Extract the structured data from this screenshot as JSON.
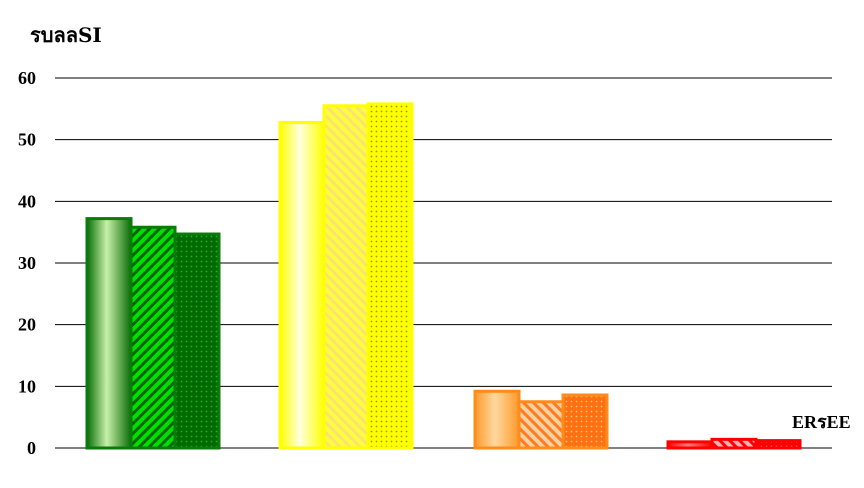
{
  "chart_data": {
    "type": "bar",
    "title": "",
    "ylabel": "รบลลSI",
    "xlabel": "",
    "annotation": "ERรEE",
    "ylim": [
      0,
      60
    ],
    "yticks": [
      "0",
      "10",
      "20",
      "30",
      "40",
      "50",
      "60"
    ],
    "grid": true,
    "categories": [
      "",
      "",
      "",
      ""
    ],
    "group_colors": [
      "#0a7a0a",
      "#ffff00",
      "#ff8c1a",
      "#ff0000"
    ],
    "values": [
      [
        37.2,
        35.8,
        34.7
      ],
      [
        52.8,
        55.5,
        55.8
      ],
      [
        9.2,
        7.5,
        8.6
      ],
      [
        1.0,
        1.4,
        1.2
      ]
    ]
  }
}
